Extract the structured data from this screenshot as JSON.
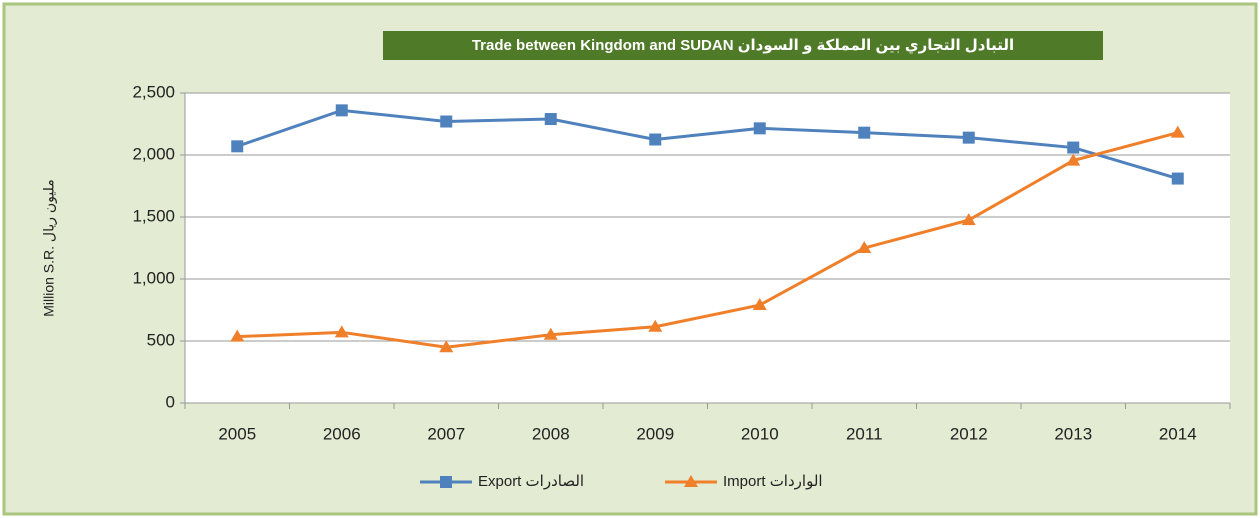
{
  "chart_data": {
    "type": "line",
    "title": "Trade between Kingdom and SUDAN     التبادل التجاري بين المملكة و السودان",
    "y_label": "Million S.R.          مليون ريال",
    "categories": [
      "2005",
      "2006",
      "2007",
      "2008",
      "2009",
      "2010",
      "2011",
      "2012",
      "2013",
      "2014"
    ],
    "series": [
      {
        "name": "Export الصادرات",
        "color": "#4f81bd",
        "marker": "square",
        "values": [
          2070,
          2360,
          2270,
          2290,
          2125,
          2215,
          2180,
          2140,
          2060,
          1810
        ]
      },
      {
        "name": "Import الواردات",
        "color": "#f07f2a",
        "marker": "triangle",
        "values": [
          535,
          570,
          450,
          550,
          615,
          790,
          1250,
          1475,
          1955,
          2180
        ]
      }
    ],
    "ylim": [
      0,
      2500
    ],
    "yticks": [
      0,
      500,
      {
        "value": 1000,
        "label": "1,000"
      },
      {
        "value": 1500,
        "label": "1,500"
      },
      {
        "value": 2000,
        "label": "2,000"
      },
      {
        "value": 2500,
        "label": "2,500"
      }
    ],
    "grid": true,
    "legend": "bottom"
  }
}
